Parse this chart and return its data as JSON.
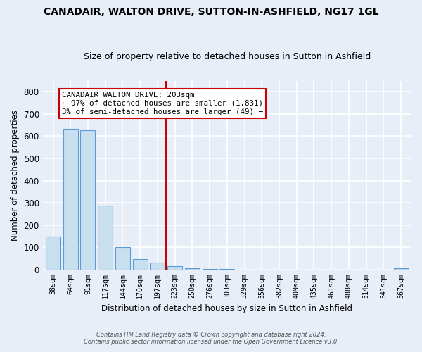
{
  "title": "CANADAIR, WALTON DRIVE, SUTTON-IN-ASHFIELD, NG17 1GL",
  "subtitle": "Size of property relative to detached houses in Sutton in Ashfield",
  "xlabel": "Distribution of detached houses by size in Sutton in Ashfield",
  "ylabel": "Number of detached properties",
  "bar_labels": [
    "38sqm",
    "64sqm",
    "91sqm",
    "117sqm",
    "144sqm",
    "170sqm",
    "197sqm",
    "223sqm",
    "250sqm",
    "276sqm",
    "303sqm",
    "329sqm",
    "356sqm",
    "382sqm",
    "409sqm",
    "435sqm",
    "461sqm",
    "488sqm",
    "514sqm",
    "541sqm",
    "567sqm"
  ],
  "bar_values": [
    148,
    634,
    627,
    287,
    101,
    46,
    32,
    14,
    5,
    2,
    1,
    0,
    0,
    0,
    0,
    0,
    0,
    0,
    0,
    0,
    5
  ],
  "bar_color": "#c8dff0",
  "bar_edge_color": "#5b9bd5",
  "ylim": [
    0,
    850
  ],
  "yticks": [
    0,
    100,
    200,
    300,
    400,
    500,
    600,
    700,
    800
  ],
  "vline_x": 6.5,
  "vline_color": "#cc0000",
  "annotation_title": "CANADAIR WALTON DRIVE: 203sqm",
  "annotation_line1": "← 97% of detached houses are smaller (1,831)",
  "annotation_line2": "3% of semi-detached houses are larger (49) →",
  "annotation_box_color": "#ffffff",
  "annotation_box_edge": "#cc0000",
  "footer1": "Contains HM Land Registry data © Crown copyright and database right 2024.",
  "footer2": "Contains public sector information licensed under the Open Government Licence v3.0.",
  "bg_color": "#e8eef8",
  "title_fontsize": 10,
  "subtitle_fontsize": 9
}
